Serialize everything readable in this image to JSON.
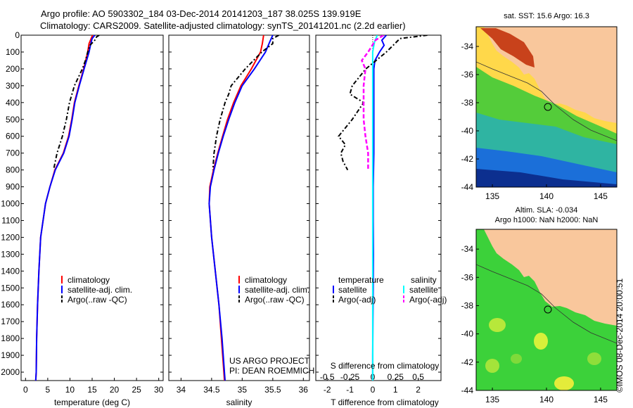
{
  "header": {
    "line1": "Argo profile: AO 5903302_184 03-Dec-2014 20141203_187 38.025S 139.919E",
    "line2": "Climatology: CARS2009. Satellite-adjusted climatology: synTS_20141201.nc (2.2d earlier)"
  },
  "colors": {
    "climatology": "#ff0000",
    "satellite": "#0000ff",
    "argo": "#000000",
    "sal_satellite": "#00ffff",
    "sal_argo": "#ff00ff",
    "land": "#f9c79c"
  },
  "depth_ticks": [
    "0",
    "100",
    "200",
    "300",
    "400",
    "500",
    "600",
    "700",
    "800",
    "900",
    "1000",
    "1100",
    "1200",
    "1300",
    "1400",
    "1500",
    "1600",
    "1700",
    "1800",
    "1900",
    "2000"
  ],
  "legends": {
    "temperature_panel": [
      "climatology",
      "satellite-adj. clim.",
      "Argo(..raw -QC)"
    ],
    "salinity_panel": [
      "climatology",
      "satellite-adj. clim.",
      "Argo(..raw -QC)"
    ],
    "diff_panel": {
      "temp_title": "temperature",
      "sal_title": "salinity",
      "temp_items": [
        "satellite",
        "Argo(-adj)"
      ],
      "sal_items": [
        "satellite",
        "Argo(-adj)"
      ]
    }
  },
  "project_note": {
    "line1": "US ARGO PROJECT",
    "line2": "PI: DEAN ROEMMICH"
  },
  "side_text": "©IMOS 08-Dec-2014 20:00:51",
  "maps": {
    "sst": {
      "title": "sat. SST: 15.6 Argo: 16.3"
    },
    "sla": {
      "title1": "Altim. SLA: -0.034",
      "title2": "Argo h1000: NaN h2000: NaN"
    },
    "lat_ticks": [
      "-34",
      "-36",
      "-38",
      "-40",
      "-42",
      "-44"
    ],
    "lon_ticks": [
      "135",
      "140",
      "145"
    ],
    "profile_location": {
      "lon": 139.919,
      "lat": -38.025
    }
  },
  "chart_data": [
    {
      "type": "line",
      "name": "temperature",
      "xlabel": "temperature (deg C)",
      "ylabel": "",
      "xlim": [
        -1,
        31
      ],
      "ylim": [
        2050,
        0
      ],
      "xticks": [
        "0",
        "5",
        "10",
        "15",
        "20",
        "25",
        "30"
      ],
      "series": [
        {
          "name": "climatology",
          "depth": [
            0,
            50,
            100,
            200,
            300,
            400,
            500,
            600,
            700,
            800,
            900,
            1000,
            1200,
            1400,
            1600,
            1800,
            2000,
            2050
          ],
          "values": [
            15.1,
            14.3,
            14.0,
            13.1,
            12.0,
            11.0,
            10.4,
            9.7,
            8.5,
            6.6,
            5.5,
            4.5,
            3.4,
            3.0,
            2.7,
            2.5,
            2.4,
            2.3
          ]
        },
        {
          "name": "satellite-adj. clim.",
          "depth": [
            0,
            20,
            50,
            100,
            200,
            300,
            400,
            500,
            600,
            700,
            800,
            900,
            1000,
            1200,
            1400,
            1600,
            1800,
            2000,
            2050
          ],
          "values": [
            15.6,
            15.0,
            14.7,
            14.3,
            13.2,
            12.1,
            11.1,
            10.5,
            9.8,
            8.6,
            6.7,
            5.5,
            4.5,
            3.4,
            3.0,
            2.7,
            2.5,
            2.4,
            2.3
          ]
        },
        {
          "name": "Argo(..raw -QC)",
          "depth": [
            0,
            10,
            30,
            60,
            100,
            150,
            200,
            300,
            400,
            500,
            600,
            700,
            800
          ],
          "values": [
            16.6,
            16.0,
            15.6,
            14.5,
            14.0,
            13.5,
            12.8,
            11.0,
            9.9,
            9.2,
            8.3,
            7.1,
            6.3
          ]
        }
      ]
    },
    {
      "type": "line",
      "name": "salinity",
      "xlabel": "salinity",
      "ylabel": "",
      "xlim": [
        33.8,
        36.1
      ],
      "ylim": [
        2050,
        0
      ],
      "xticks": [
        "34",
        "34.5",
        "35",
        "35.5",
        "36"
      ],
      "series": [
        {
          "name": "climatology",
          "depth": [
            0,
            50,
            100,
            200,
            300,
            400,
            500,
            600,
            700,
            800,
            900,
            1000,
            1200,
            1400,
            1600,
            1800,
            2000,
            2050
          ],
          "values": [
            35.35,
            35.33,
            35.3,
            35.15,
            34.98,
            34.86,
            34.76,
            34.68,
            34.6,
            34.53,
            34.47,
            34.46,
            34.5,
            34.56,
            34.62,
            34.66,
            34.7,
            34.71
          ]
        },
        {
          "name": "satellite-adj. clim.",
          "depth": [
            0,
            40,
            100,
            200,
            300,
            400,
            500,
            600,
            700,
            800,
            900,
            1000,
            1200,
            1400,
            1600,
            1800,
            2000,
            2050
          ],
          "values": [
            35.5,
            35.45,
            35.38,
            35.2,
            35.0,
            34.88,
            34.78,
            34.69,
            34.61,
            34.54,
            34.48,
            34.46,
            34.5,
            34.56,
            34.62,
            34.67,
            34.71,
            34.72
          ]
        },
        {
          "name": "Argo(..raw -QC)",
          "depth": [
            0,
            20,
            50,
            100,
            200,
            300,
            350,
            400,
            450,
            500,
            550,
            600,
            650,
            700,
            750,
            800
          ],
          "values": [
            35.6,
            35.5,
            35.5,
            35.32,
            35.05,
            34.82,
            34.78,
            34.72,
            34.68,
            34.64,
            34.61,
            34.58,
            34.56,
            34.54,
            34.53,
            34.52
          ]
        }
      ]
    },
    {
      "type": "line",
      "name": "difference",
      "xlabel": "T difference from climatology",
      "x2label": "S difference from climatology",
      "xlim": [
        -2.5,
        3.0
      ],
      "ylim": [
        2050,
        0
      ],
      "xticks": [
        "-2",
        "-1",
        "0",
        "1",
        "2"
      ],
      "x2ticks": [
        "-0.5",
        "-0.25",
        "0",
        "0.25",
        "0.5"
      ],
      "series": [
        {
          "name": "temperature satellite",
          "depth": [
            0,
            30,
            60,
            100,
            150,
            200,
            300,
            500,
            700,
            900,
            1100,
            1300,
            1500,
            1700,
            1900,
            2050
          ],
          "values": [
            0.6,
            0.4,
            0.5,
            0.3,
            0.1,
            0.05,
            0.05,
            0.05,
            0.05,
            0.02,
            0.02,
            0.03,
            0.02,
            0.01,
            0.0,
            0.0
          ]
        },
        {
          "name": "temperature Argo(-adj)",
          "depth": [
            0,
            20,
            60,
            100,
            200,
            300,
            350,
            400,
            500,
            550,
            600,
            650,
            700,
            750,
            800
          ],
          "values": [
            2.4,
            1.2,
            0.9,
            0.6,
            -0.3,
            -0.9,
            -1.0,
            -0.4,
            -0.9,
            -1.2,
            -1.5,
            -1.2,
            -1.4,
            -1.3,
            -1.1
          ]
        },
        {
          "name": "salinity satellite",
          "depth": [
            0,
            40,
            100,
            200,
            400,
            600,
            800,
            1000,
            1200,
            1400,
            1600,
            1800,
            2000,
            2050
          ],
          "values": [
            0.05,
            0.02,
            0.0,
            0.0,
            0.0,
            0.0,
            0.0,
            0.0,
            0.0,
            0.0,
            0.0,
            0.0,
            0.0,
            0.0
          ]
        },
        {
          "name": "salinity Argo(-adj)",
          "depth": [
            0,
            30,
            100,
            150,
            200,
            300,
            400,
            500,
            600,
            700,
            800
          ],
          "values": [
            0.12,
            0.03,
            -0.05,
            -0.12,
            -0.08,
            -0.1,
            -0.1,
            -0.1,
            -0.08,
            -0.05,
            -0.05
          ]
        }
      ]
    }
  ]
}
